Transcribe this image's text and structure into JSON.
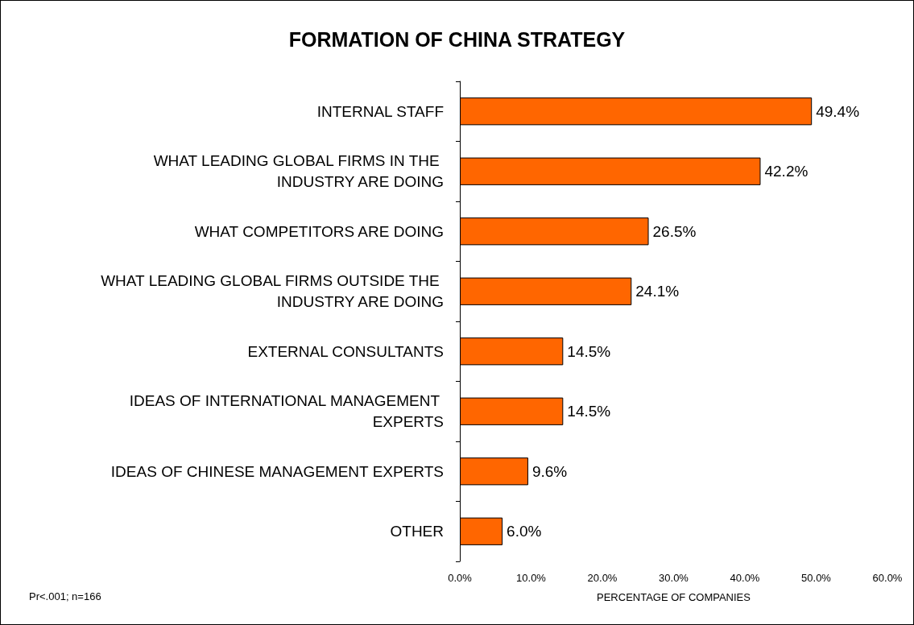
{
  "chart_data": {
    "type": "bar",
    "orientation": "horizontal",
    "title": "FORMATION OF CHINA STRATEGY",
    "xlabel": "PERCENTAGE OF COMPANIES",
    "categories": [
      "INTERNAL STAFF",
      "WHAT LEADING GLOBAL FIRMS IN THE INDUSTRY ARE DOING",
      "WHAT COMPETITORS ARE DOING",
      "WHAT LEADING GLOBAL FIRMS OUTSIDE THE INDUSTRY ARE DOING",
      "EXTERNAL CONSULTANTS",
      "IDEAS OF INTERNATIONAL MANAGEMENT EXPERTS",
      "IDEAS OF CHINESE MANAGEMENT EXPERTS",
      "OTHER"
    ],
    "values": [
      49.4,
      42.2,
      26.5,
      24.1,
      14.5,
      14.5,
      9.6,
      6.0
    ],
    "value_labels": [
      "49.4%",
      "42.2%",
      "26.5%",
      "24.1%",
      "14.5%",
      "14.5%",
      "9.6%",
      "6.0%"
    ],
    "color": "#ff6600",
    "xlim": [
      0,
      60
    ],
    "xticks": [
      {
        "value": 0,
        "label": "0.0%"
      },
      {
        "value": 10,
        "label": "10.0%"
      },
      {
        "value": 20,
        "label": "20.0%"
      },
      {
        "value": 30,
        "label": "30.0%"
      },
      {
        "value": 40,
        "label": "40.0%"
      },
      {
        "value": 50,
        "label": "50.0%"
      },
      {
        "value": 60,
        "label": "60.0%"
      }
    ],
    "grid": false,
    "annotations": [
      "Pr<.001; n=166"
    ]
  }
}
